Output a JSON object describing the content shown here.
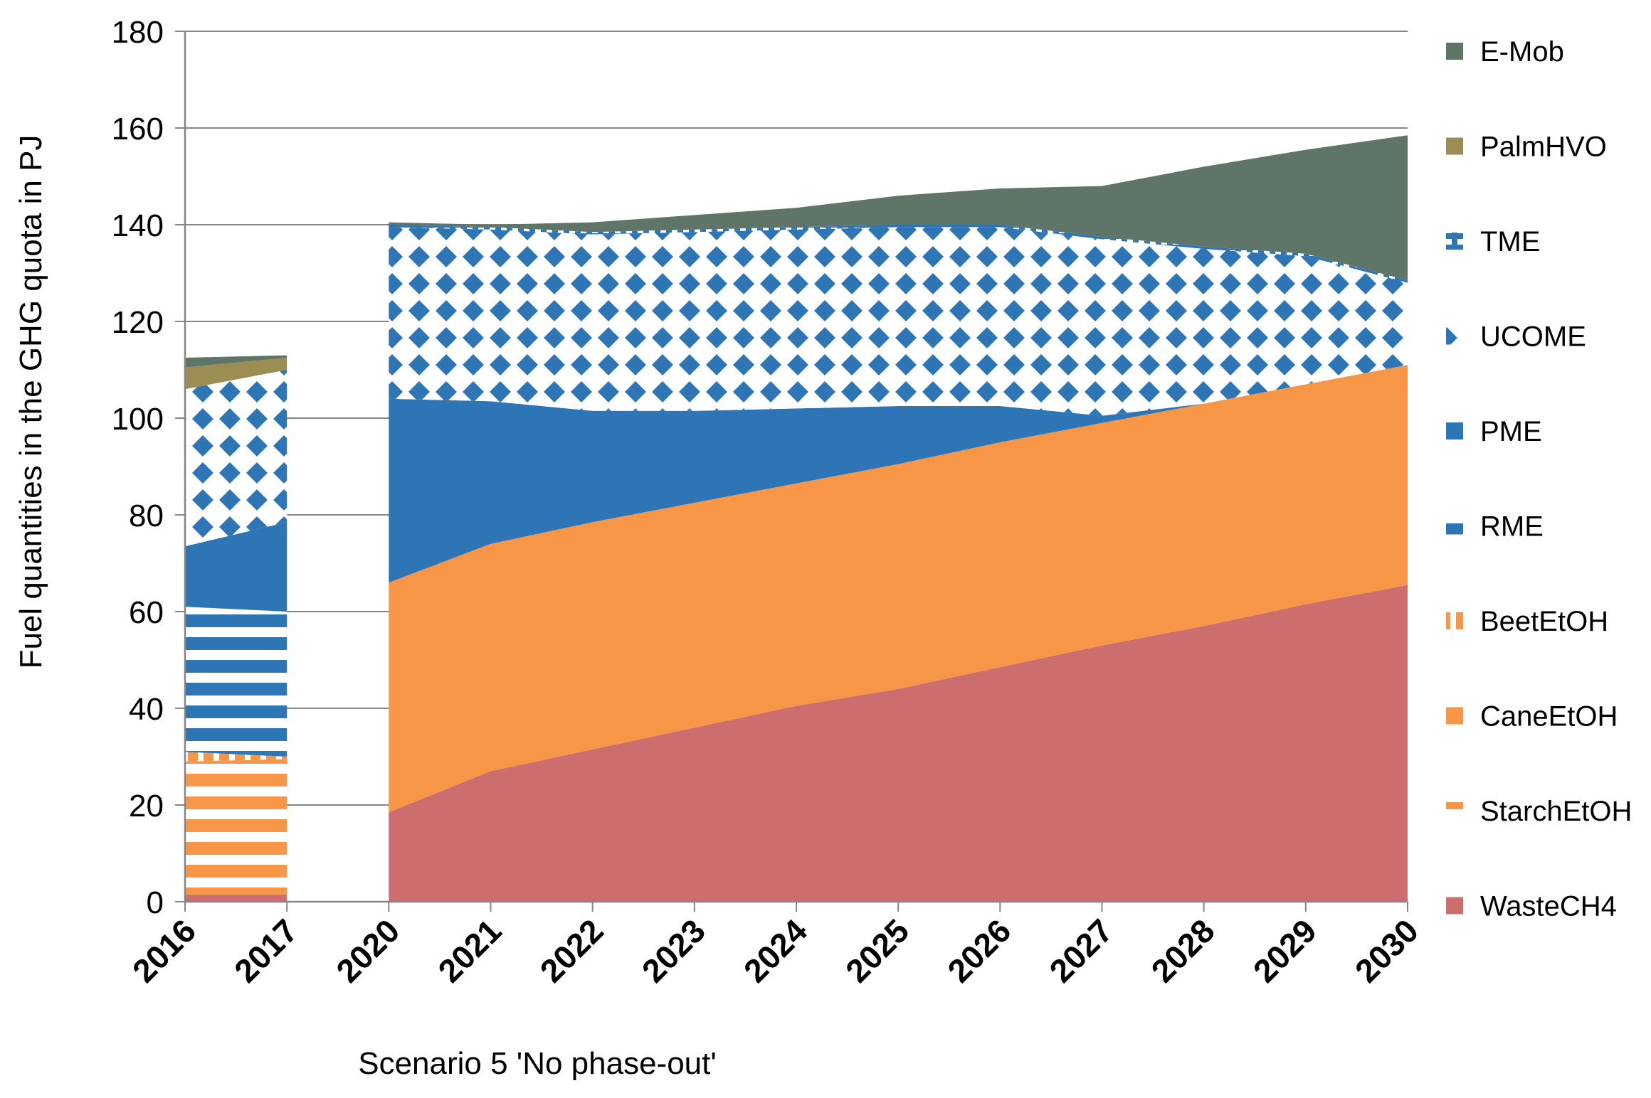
{
  "chart_data": {
    "type": "area",
    "title": "",
    "xlabel": "Scenario 5 'No phase-out'",
    "ylabel": "Fuel quantities in the GHG quota in PJ",
    "ylim": [
      0,
      180
    ],
    "yticks": [
      "0",
      "20",
      "40",
      "60",
      "80",
      "100",
      "120",
      "140",
      "160",
      "180"
    ],
    "categories": [
      "2016",
      "2017",
      "2020",
      "2021",
      "2022",
      "2023",
      "2024",
      "2025",
      "2026",
      "2027",
      "2028",
      "2029",
      "2030"
    ],
    "grid": true,
    "legend_position": "right",
    "series": [
      {
        "name": "WasteCH4",
        "color": "#cd6e6e",
        "pattern": "solid",
        "values": [
          1.5,
          1.5,
          18.5,
          27,
          31.5,
          36,
          40.5,
          44,
          48.5,
          53,
          57,
          61.5,
          65.5
        ]
      },
      {
        "name": "StarchEtOH",
        "color": "#f79646",
        "pattern": "hstripes",
        "values": [
          27.5,
          28,
          0,
          0,
          0,
          0,
          0,
          0,
          0,
          0,
          0,
          0,
          0
        ]
      },
      {
        "name": "CaneEtOH",
        "color": "#f79646",
        "pattern": "solid",
        "values": [
          0,
          0,
          47.5,
          47,
          47,
          46.5,
          46,
          46.5,
          46.5,
          46,
          46,
          45.5,
          45.5
        ]
      },
      {
        "name": "BeetEtOH",
        "color": "#f79646",
        "pattern": "dashes",
        "values": [
          2,
          0.5,
          0,
          0,
          0,
          0,
          0,
          0,
          0,
          0,
          0,
          0,
          0
        ]
      },
      {
        "name": "RME",
        "color": "#2e75b6",
        "pattern": "hstripes",
        "values": [
          30,
          30,
          0,
          0,
          0,
          0,
          0,
          0,
          0,
          0,
          0,
          0,
          0
        ]
      },
      {
        "name": "PME",
        "color": "#2e75b6",
        "pattern": "solid",
        "values": [
          12.5,
          18.5,
          38,
          29.5,
          23,
          19,
          15.5,
          12,
          7.5,
          1.5,
          0,
          0,
          0
        ]
      },
      {
        "name": "UCOME",
        "color": "#2e75b6",
        "pattern": "diamonds",
        "values": [
          32.5,
          31.5,
          35.5,
          35.5,
          36.5,
          37,
          37,
          37,
          37,
          36.5,
          32,
          26.5,
          17
        ]
      },
      {
        "name": "TME",
        "color": "#2e75b6",
        "pattern": "checks",
        "values": [
          0,
          0,
          0.5,
          0.5,
          0.5,
          0.5,
          0.5,
          0.5,
          0.5,
          0.5,
          0.5,
          0.5,
          0.5
        ]
      },
      {
        "name": "PalmHVO",
        "color": "#9c8d52",
        "pattern": "solid",
        "values": [
          4.5,
          2.5,
          0,
          0,
          0,
          0,
          0,
          0,
          0,
          0,
          0,
          0,
          0
        ]
      },
      {
        "name": "E-Mob",
        "color": "#5e7568",
        "pattern": "solid",
        "values": [
          2,
          0.5,
          0.5,
          0.5,
          2,
          3,
          4,
          6,
          7.5,
          10.5,
          16.5,
          21.5,
          30
        ]
      }
    ]
  }
}
